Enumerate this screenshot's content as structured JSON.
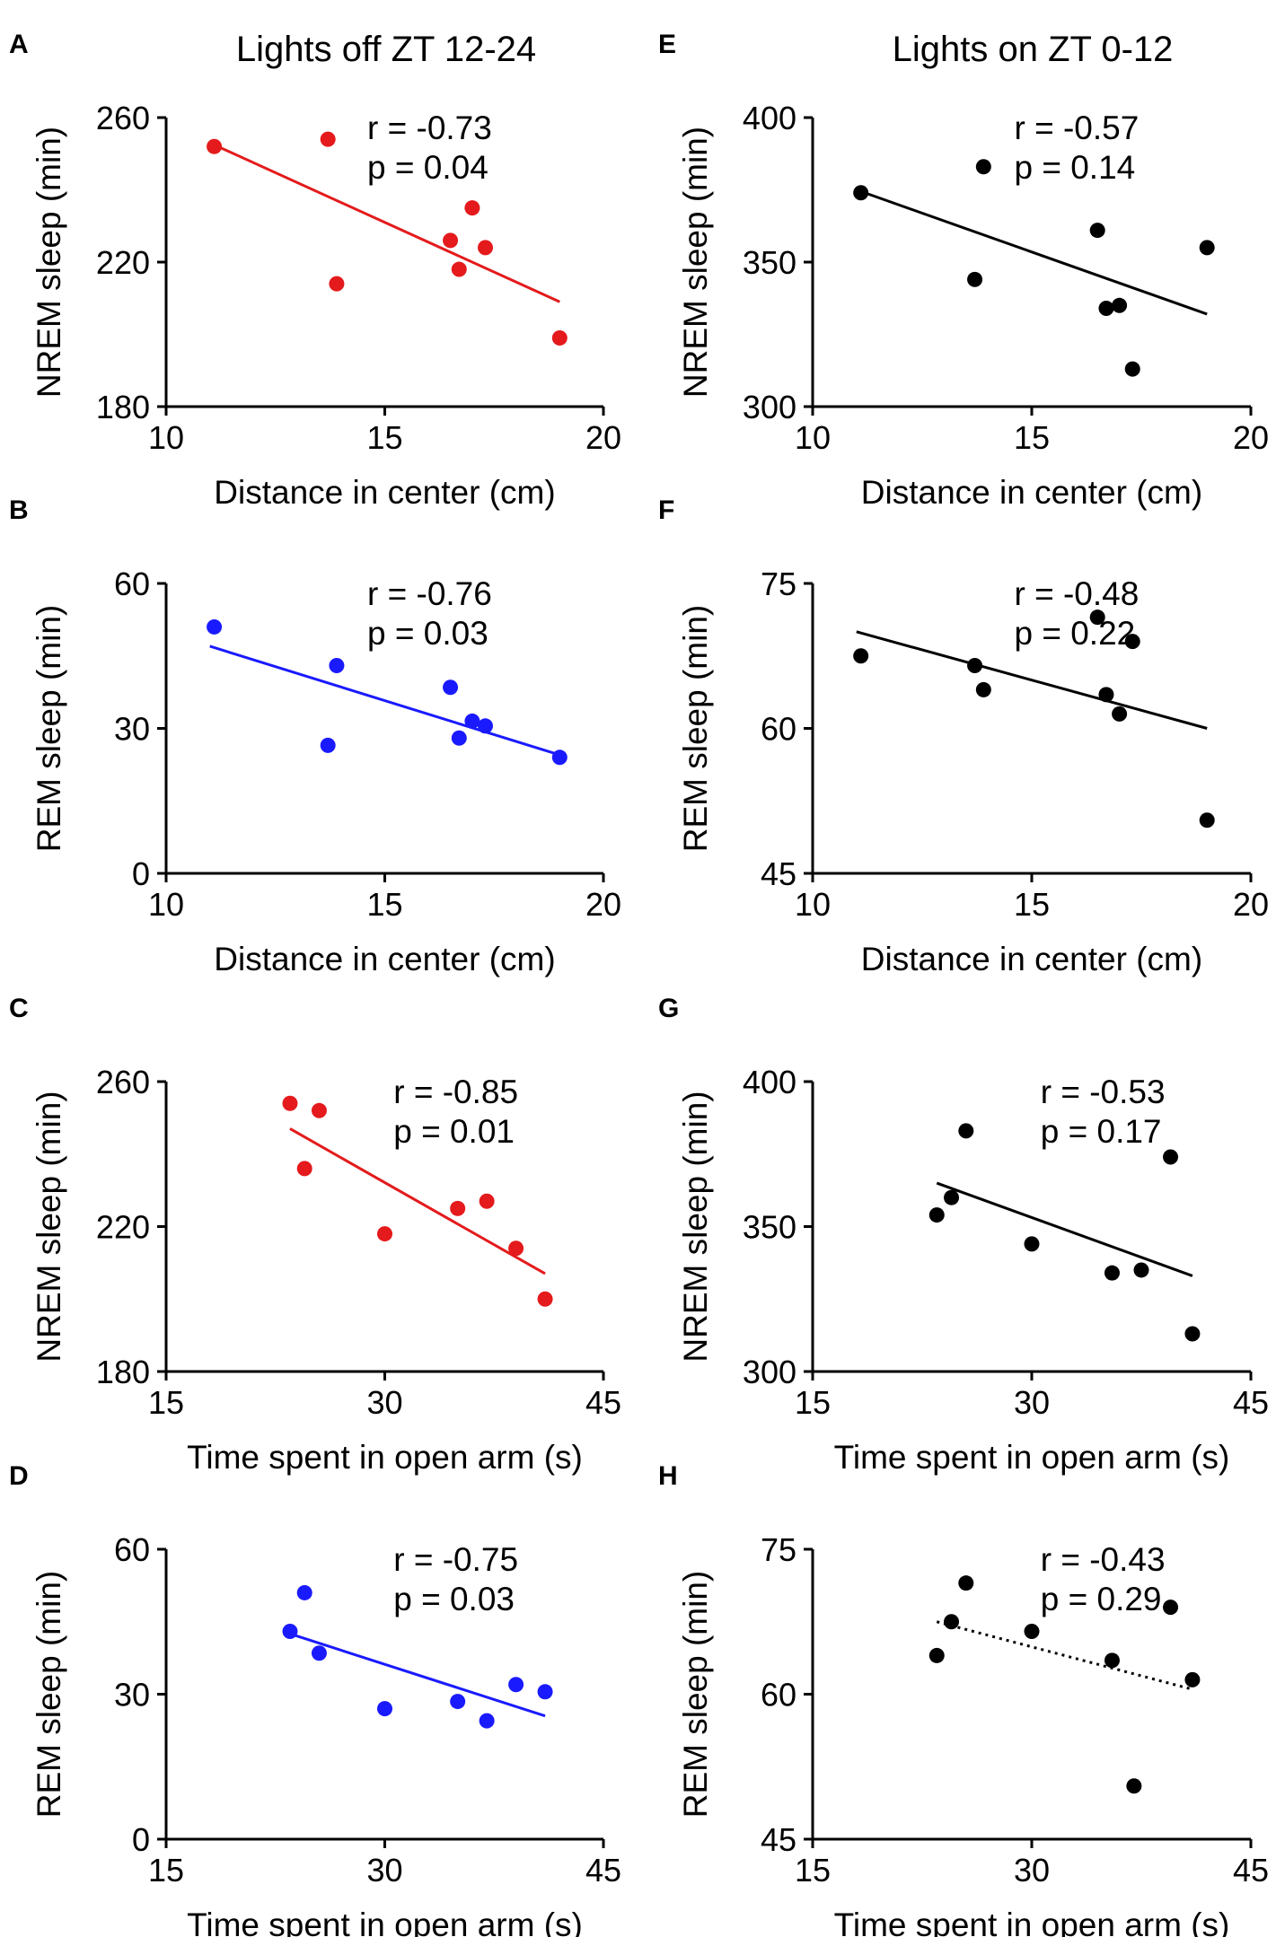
{
  "figure": {
    "column_titles": [
      "Lights off ZT 12-24",
      "Lights on ZT 0-12"
    ]
  },
  "chart_data": [
    {
      "panel": "A",
      "type": "scatter",
      "color": "#e41a1c",
      "fit_style": "solid",
      "xlabel": "Distance in center (cm)",
      "ylabel": "NREM sleep  (min)",
      "xlim": [
        10,
        20
      ],
      "ylim": [
        180,
        260
      ],
      "xticks": [
        10,
        15,
        20
      ],
      "yticks": [
        180,
        220,
        260
      ],
      "x": [
        11.1,
        13.7,
        13.9,
        16.5,
        16.7,
        17.0,
        17.3,
        19.0
      ],
      "y": [
        252,
        254,
        214,
        226,
        218,
        235,
        224,
        199
      ],
      "fit": {
        "x": [
          11.0,
          19.0
        ],
        "y": [
          253,
          209
        ]
      },
      "r_text": "r = -0.73",
      "p_text": "p = 0.04"
    },
    {
      "panel": "E",
      "type": "scatter",
      "color": "#000000",
      "fit_style": "solid",
      "xlabel": "Distance in center (cm)",
      "ylabel": "NREM sleep  (min)",
      "xlim": [
        10,
        20
      ],
      "ylim": [
        300,
        400
      ],
      "xticks": [
        10,
        15,
        20
      ],
      "yticks": [
        300,
        350,
        400
      ],
      "x": [
        11.1,
        13.7,
        13.9,
        16.5,
        16.7,
        17.0,
        17.3,
        19.0
      ],
      "y": [
        374,
        344,
        383,
        361,
        334,
        335,
        313,
        355
      ],
      "fit": {
        "x": [
          11.0,
          19.0
        ],
        "y": [
          375,
          332
        ]
      },
      "r_text": "r = -0.57",
      "p_text": "p = 0.14"
    },
    {
      "panel": "B",
      "type": "scatter",
      "color": "#1a1aff",
      "fit_style": "solid",
      "xlabel": "Distance in center (cm)",
      "ylabel": "REM sleep  (min)",
      "xlim": [
        10,
        20
      ],
      "ylim": [
        0,
        60
      ],
      "xticks": [
        10,
        15,
        20
      ],
      "yticks": [
        0,
        30,
        60
      ],
      "x": [
        11.1,
        13.7,
        13.9,
        16.5,
        16.7,
        17.0,
        17.3,
        19.0
      ],
      "y": [
        51,
        26.5,
        43,
        38.5,
        28,
        31.5,
        30.5,
        24
      ],
      "fit": {
        "x": [
          11.0,
          19.0
        ],
        "y": [
          47,
          24.5
        ]
      },
      "r_text": "r = -0.76",
      "p_text": "p = 0.03"
    },
    {
      "panel": "F",
      "type": "scatter",
      "color": "#000000",
      "fit_style": "solid",
      "xlabel": "Distance in center (cm)",
      "ylabel": "REM sleep  (min)",
      "xlim": [
        10,
        20
      ],
      "ylim": [
        45,
        75
      ],
      "xticks": [
        10,
        15,
        20
      ],
      "yticks": [
        45,
        60,
        75
      ],
      "x": [
        11.1,
        13.7,
        13.9,
        16.5,
        16.7,
        17.0,
        17.3,
        19.0
      ],
      "y": [
        67.5,
        66.5,
        64,
        71.5,
        63.5,
        61.5,
        69,
        50.5
      ],
      "fit": {
        "x": [
          11.0,
          19.0
        ],
        "y": [
          70,
          60
        ]
      },
      "r_text": "r = -0.48",
      "p_text": "p = 0.22"
    },
    {
      "panel": "C",
      "type": "scatter",
      "color": "#e41a1c",
      "fit_style": "solid",
      "xlabel": "Time spent in open arm (s)",
      "ylabel": "NREM sleep  (min)",
      "xlim": [
        15,
        45
      ],
      "ylim": [
        180,
        260
      ],
      "xticks": [
        15,
        30,
        45
      ],
      "yticks": [
        180,
        220,
        260
      ],
      "x": [
        23.5,
        24.5,
        25.5,
        30.0,
        35.0,
        37.0,
        39.0,
        41.0
      ],
      "y": [
        254,
        236,
        252,
        218,
        225,
        227,
        214,
        200
      ],
      "fit": {
        "x": [
          23.5,
          41.0
        ],
        "y": [
          247,
          207
        ]
      },
      "r_text": "r = -0.85",
      "p_text": "p = 0.01"
    },
    {
      "panel": "G",
      "type": "scatter",
      "color": "#000000",
      "fit_style": "solid",
      "xlabel": "Time spent in open arm (s)",
      "ylabel": "NREM sleep  (min)",
      "xlim": [
        15,
        45
      ],
      "ylim": [
        300,
        400
      ],
      "xticks": [
        15,
        30,
        45
      ],
      "yticks": [
        300,
        350,
        400
      ],
      "x": [
        23.5,
        24.5,
        25.5,
        30.0,
        35.5,
        37.5,
        39.5,
        41.0
      ],
      "y": [
        354,
        360,
        383,
        344,
        334,
        335,
        374,
        313
      ],
      "fit": {
        "x": [
          23.5,
          41.0
        ],
        "y": [
          365,
          333
        ]
      },
      "r_text": "r = -0.53",
      "p_text": "p = 0.17"
    },
    {
      "panel": "D",
      "type": "scatter",
      "color": "#1a1aff",
      "fit_style": "solid",
      "xlabel": "Time spent in open arm (s)",
      "ylabel": "REM sleep  (min)",
      "xlim": [
        15,
        45
      ],
      "ylim": [
        0,
        60
      ],
      "xticks": [
        15,
        30,
        45
      ],
      "yticks": [
        0,
        30,
        60
      ],
      "x": [
        23.5,
        24.5,
        25.5,
        30.0,
        35.0,
        37.0,
        39.0,
        41.0
      ],
      "y": [
        43,
        51,
        38.5,
        27,
        28.5,
        24.5,
        32,
        30.5
      ],
      "fit": {
        "x": [
          23.5,
          41.0
        ],
        "y": [
          42.5,
          25.5
        ]
      },
      "r_text": "r = -0.75",
      "p_text": "p = 0.03"
    },
    {
      "panel": "H",
      "type": "scatter",
      "color": "#000000",
      "fit_style": "dotted",
      "xlabel": "Time spent in open arm (s)",
      "ylabel": "REM sleep  (min)",
      "xlim": [
        15,
        45
      ],
      "ylim": [
        45,
        75
      ],
      "xticks": [
        15,
        30,
        45
      ],
      "yticks": [
        45,
        60,
        75
      ],
      "x": [
        23.5,
        24.5,
        25.5,
        30.0,
        35.5,
        37.0,
        39.5,
        41.0
      ],
      "y": [
        64,
        67.5,
        71.5,
        66.5,
        63.5,
        50.5,
        69,
        61.5
      ],
      "fit": {
        "x": [
          23.5,
          41.0
        ],
        "y": [
          67.5,
          60.5
        ]
      },
      "r_text": "r = -0.43",
      "p_text": "p = 0.29"
    }
  ]
}
